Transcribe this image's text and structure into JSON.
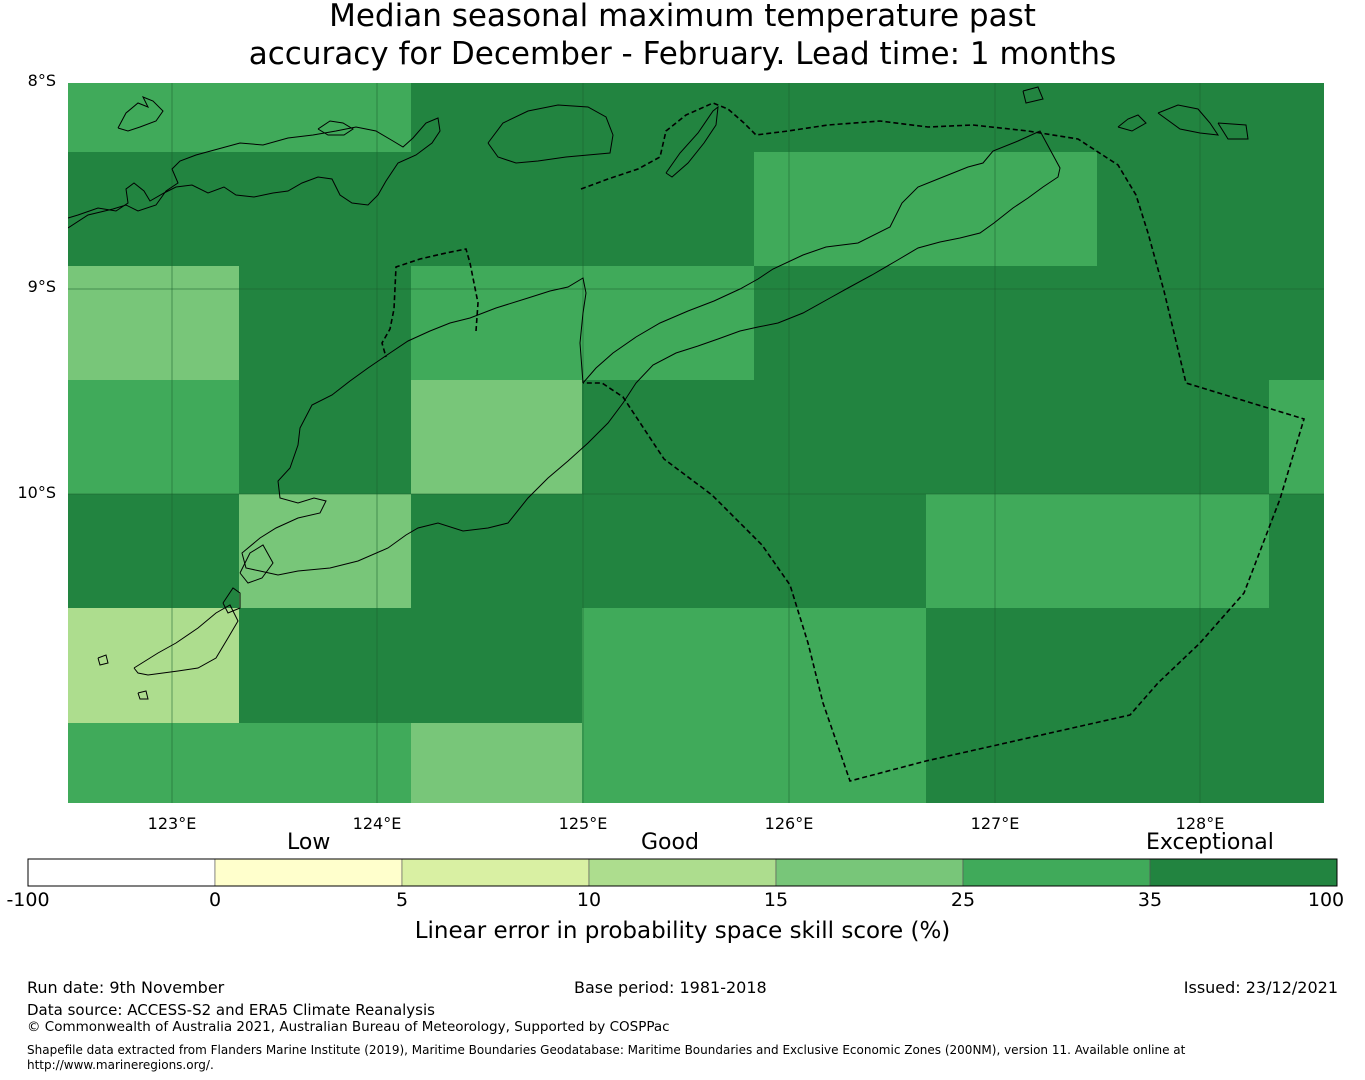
{
  "title": {
    "line1": "Median seasonal maximum temperature past",
    "line2": "accuracy for December - February. Lead time: 1 months"
  },
  "map": {
    "lat_labels": [
      "8°S",
      "9°S",
      "10°S"
    ],
    "lon_labels": [
      "123°E",
      "124°E",
      "125°E",
      "126°E",
      "127°E",
      "128°E"
    ],
    "colors": {
      "exceptional": "#228440",
      "good_high": "#40aa5a",
      "good_mid": "#78c679",
      "good_low": "#addd8e",
      "low_high": "#d9f0a3",
      "low_low": "#ffffcc",
      "none": "#ffffff"
    }
  },
  "colorbar": {
    "categories": [
      "Low",
      "Good",
      "Exceptional"
    ],
    "ticks": [
      "-100",
      "0",
      "5",
      "10",
      "15",
      "25",
      "35",
      "100"
    ],
    "colors": [
      "#ffffff",
      "#ffffcc",
      "#d9f0a3",
      "#addd8e",
      "#78c679",
      "#40aa5a",
      "#228440"
    ],
    "label": "Linear error in probability space skill score (%)"
  },
  "footer": {
    "run_date": "Run date: 9th November",
    "base_period": "Base period: 1981-2018",
    "issued": "Issued: 23/12/2021",
    "data_source": "Data source: ACCESS-S2 and ERA5 Climate Reanalysis",
    "copyright": "© Commonwealth of Australia 2021, Australian Bureau of Meteorology, Supported by COSPPac",
    "shapefile_line1": "Shapefile data extracted from Flanders Marine Institute (2019), Maritime Boundaries Geodatabase: Maritime Boundaries and Exclusive Economic Zones (200NM), version 11. Available online at",
    "shapefile_line2": "http://www.marineregions.org/."
  }
}
